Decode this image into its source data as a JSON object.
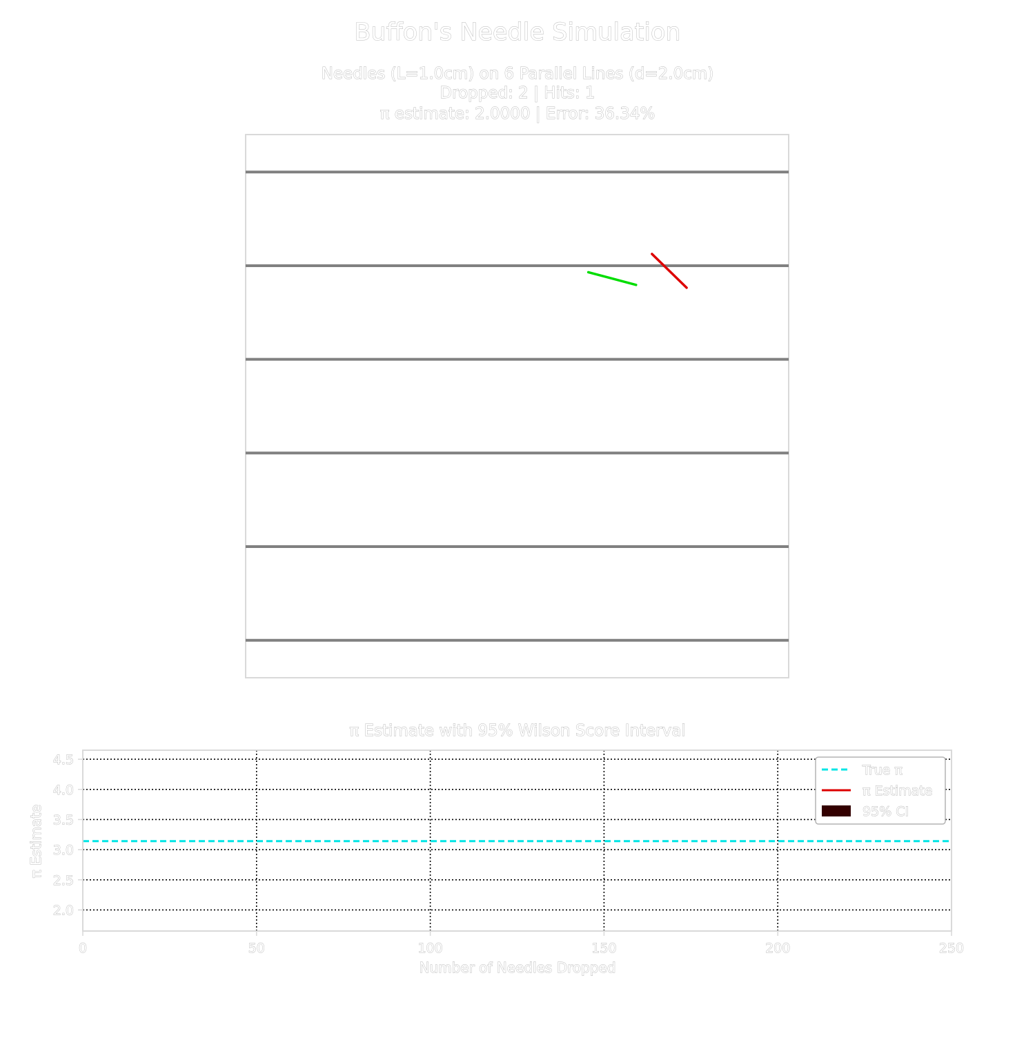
{
  "figure": {
    "title": "Buffon's Needle Simulation"
  },
  "colors": {
    "background": "#ffffff",
    "frame": "#d9d9d9",
    "parallel_line": "#808080",
    "needle_hit": "#dd0000",
    "needle_miss": "#00dd00",
    "true_pi": "#00e5e5",
    "estimate": "#dd0000",
    "ci": "#330000",
    "grid": "#000000",
    "text_halo": "#b4b4b4"
  },
  "chart_data": [
    {
      "type": "scatter",
      "panel": "needle-field",
      "subtitle_lines": [
        "Needles (L=1.0cm) on 6 Parallel Lines (d=2.0cm)",
        "Dropped: 2 | Hits: 1",
        "π estimate: 2.0000 | Error: 36.34%"
      ],
      "needle_length_cm": 1.0,
      "line_spacing_cm": 2.0,
      "num_lines": 6,
      "needles_dropped": 2,
      "hits": 1,
      "pi_estimate": 2.0,
      "error_percent": 36.34,
      "xlim": [
        0,
        11.6
      ],
      "ylim": [
        0,
        11.6
      ],
      "line_positions_y": [
        0.8,
        2.8,
        4.8,
        6.8,
        8.8,
        10.8
      ],
      "needles": [
        {
          "x1": 8.68,
          "y1": 9.05,
          "x2": 9.42,
          "y2": 8.33,
          "hit": true
        },
        {
          "x1": 7.32,
          "y1": 8.66,
          "x2": 8.34,
          "y2": 8.39,
          "hit": false
        }
      ],
      "grid": false
    },
    {
      "type": "line",
      "panel": "pi-estimate",
      "title": "π Estimate with 95% Wilson Score Interval",
      "xlabel": "Number of Needles Dropped",
      "ylabel": "π Estimate",
      "xlim": [
        0,
        250
      ],
      "ylim": [
        1.65,
        4.65
      ],
      "xticks": [
        0,
        50,
        100,
        150,
        200,
        250
      ],
      "yticks": [
        2.0,
        2.5,
        3.0,
        3.5,
        4.0,
        4.5
      ],
      "ytick_labels": [
        "2.0",
        "2.5",
        "3.0",
        "3.5",
        "4.0",
        "4.5"
      ],
      "grid": true,
      "legend_position": "top-right",
      "true_pi": 3.14159,
      "series": [
        {
          "name": "True π",
          "style": "dashed",
          "x": [
            0,
            250
          ],
          "y": [
            3.14159,
            3.14159
          ]
        },
        {
          "name": "π Estimate",
          "style": "solid",
          "x": [],
          "y": []
        },
        {
          "name": "95% CI",
          "style": "band",
          "x": [],
          "lower": [],
          "upper": []
        }
      ]
    }
  ]
}
